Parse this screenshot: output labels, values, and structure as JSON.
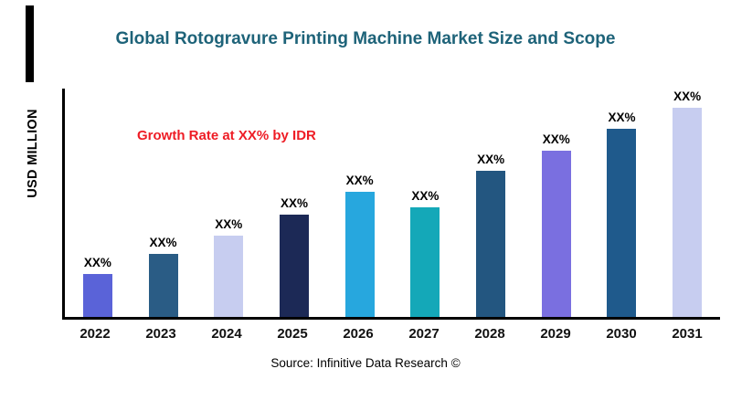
{
  "title": "Global Rotogravure Printing Machine Market Size and Scope",
  "annotation": "Growth Rate at XX% by IDR",
  "source": "Source: Infinitive Data Research ©",
  "ylabel": "USD MILLION",
  "colors": {
    "title": "#1e6379",
    "annotation": "#ee1c25",
    "axis": "#000000"
  },
  "chart_data": {
    "type": "bar",
    "title": "Global Rotogravure Printing Machine Market Size and Scope",
    "xlabel": "",
    "ylabel": "USD MILLION",
    "categories": [
      "2022",
      "2023",
      "2024",
      "2025",
      "2026",
      "2027",
      "2028",
      "2029",
      "2030",
      "2031"
    ],
    "values": [
      20.5,
      30,
      39,
      49,
      60,
      52.5,
      70,
      79.5,
      90,
      100
    ],
    "bar_labels": [
      "XX%",
      "XX%",
      "XX%",
      "XX%",
      "XX%",
      "XX%",
      "XX%",
      "XX%",
      "XX%",
      "XX%"
    ],
    "bar_colors": [
      "#5a63d8",
      "#2a5c85",
      "#c7cdf0",
      "#1c2956",
      "#27a7de",
      "#14a8b8",
      "#235680",
      "#7a6fe0",
      "#1f5a8c",
      "#c7cdf0"
    ],
    "ylim": [
      0,
      100
    ],
    "grid": false,
    "legend": "none",
    "annotation": "Growth Rate at XX% by IDR"
  }
}
